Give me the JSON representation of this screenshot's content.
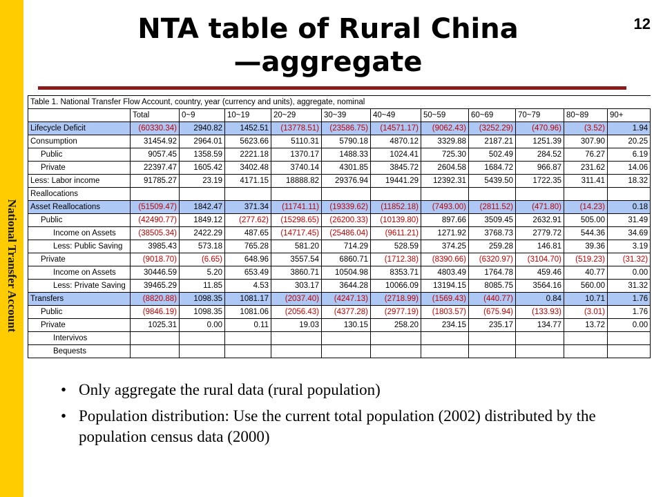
{
  "slide": {
    "title_line1": "NTA table of Rural China",
    "title_line2": "—aggregate",
    "page_number": "12",
    "sidebar_label": "National Transfer Account"
  },
  "table": {
    "caption": "Table 1. National Transfer Flow Account, country, year (currency and units), aggregate, nominal",
    "headers": [
      "",
      "Total",
      "0~9",
      "10~19",
      "20~29",
      "30~39",
      "40~49",
      "50~59",
      "60~69",
      "70~79",
      "80~89",
      "90+"
    ],
    "rows": [
      {
        "label": "Lifecycle Deficit",
        "indent": 0,
        "highlight": true,
        "values": [
          "(60330.34)",
          "2940.82",
          "1452.51",
          "(13778.51)",
          "(23586.75)",
          "(14571.17)",
          "(9062.43)",
          "(3252.29)",
          "(470.96)",
          "(3.52)",
          "1.94"
        ]
      },
      {
        "label": "Consumption",
        "indent": 0,
        "highlight": false,
        "values": [
          "31454.92",
          "2964.01",
          "5623.66",
          "5110.31",
          "5790.18",
          "4870.12",
          "3329.88",
          "2187.21",
          "1251.39",
          "307.90",
          "20.25"
        ]
      },
      {
        "label": "Public",
        "indent": 1,
        "highlight": false,
        "values": [
          "9057.45",
          "1358.59",
          "2221.18",
          "1370.17",
          "1488.33",
          "1024.41",
          "725.30",
          "502.49",
          "284.52",
          "76.27",
          "6.19"
        ]
      },
      {
        "label": "Private",
        "indent": 1,
        "highlight": false,
        "values": [
          "22397.47",
          "1605.42",
          "3402.48",
          "3740.14",
          "4301.85",
          "3845.72",
          "2604.58",
          "1684.72",
          "966.87",
          "231.62",
          "14.06"
        ]
      },
      {
        "label": "Less: Labor income",
        "indent": 0,
        "highlight": false,
        "values": [
          "91785.27",
          "23.19",
          "4171.15",
          "18888.82",
          "29376.94",
          "19441.29",
          "12392.31",
          "5439.50",
          "1722.35",
          "311.41",
          "18.32"
        ]
      },
      {
        "label": "Reallocations",
        "indent": 0,
        "highlight": false,
        "values": [
          "",
          "",
          "",
          "",
          "",
          "",
          "",
          "",
          "",
          "",
          ""
        ]
      },
      {
        "label": "Asset Reallocations",
        "indent": 0,
        "highlight": true,
        "values": [
          "(51509.47)",
          "1842.47",
          "371.34",
          "(11741.11)",
          "(19339.62)",
          "(11852.18)",
          "(7493.00)",
          "(2811.52)",
          "(471.80)",
          "(14.23)",
          "0.18"
        ]
      },
      {
        "label": "Public",
        "indent": 1,
        "highlight": false,
        "values": [
          "(42490.77)",
          "1849.12",
          "(277.62)",
          "(15298.65)",
          "(26200.33)",
          "(10139.80)",
          "897.66",
          "3509.45",
          "2632.91",
          "505.00",
          "31.49"
        ]
      },
      {
        "label": "Income on Assets",
        "indent": 2,
        "highlight": false,
        "values": [
          "(38505.34)",
          "2422.29",
          "487.65",
          "(14717.45)",
          "(25486.04)",
          "(9611.21)",
          "1271.92",
          "3768.73",
          "2779.72",
          "544.36",
          "34.69"
        ]
      },
      {
        "label": "Less: Public Saving",
        "indent": 2,
        "highlight": false,
        "values": [
          "3985.43",
          "573.18",
          "765.28",
          "581.20",
          "714.29",
          "528.59",
          "374.25",
          "259.28",
          "146.81",
          "39.36",
          "3.19"
        ]
      },
      {
        "label": "Private",
        "indent": 1,
        "highlight": false,
        "values": [
          "(9018.70)",
          "(6.65)",
          "648.96",
          "3557.54",
          "6860.71",
          "(1712.38)",
          "(8390.66)",
          "(6320.97)",
          "(3104.70)",
          "(519.23)",
          "(31.32)"
        ]
      },
      {
        "label": "Income on Assets",
        "indent": 2,
        "highlight": false,
        "values": [
          "30446.59",
          "5.20",
          "653.49",
          "3860.71",
          "10504.98",
          "8353.71",
          "4803.49",
          "1764.78",
          "459.46",
          "40.77",
          "0.00"
        ]
      },
      {
        "label": "Less: Private Saving",
        "indent": 2,
        "highlight": false,
        "values": [
          "39465.29",
          "11.85",
          "4.53",
          "303.17",
          "3644.28",
          "10066.09",
          "13194.15",
          "8085.75",
          "3564.16",
          "560.00",
          "31.32"
        ]
      },
      {
        "label": "Transfers",
        "indent": 0,
        "highlight": true,
        "values": [
          "(8820.88)",
          "1098.35",
          "1081.17",
          "(2037.40)",
          "(4247.13)",
          "(2718.99)",
          "(1569.43)",
          "(440.77)",
          "0.84",
          "10.71",
          "1.76"
        ]
      },
      {
        "label": "Public",
        "indent": 1,
        "highlight": false,
        "values": [
          "(9846.19)",
          "1098.35",
          "1081.06",
          "(2056.43)",
          "(4377.28)",
          "(2977.19)",
          "(1803.57)",
          "(675.94)",
          "(133.93)",
          "(3.01)",
          "1.76"
        ]
      },
      {
        "label": "Private",
        "indent": 1,
        "highlight": false,
        "values": [
          "1025.31",
          "0.00",
          "0.11",
          "19.03",
          "130.15",
          "258.20",
          "234.15",
          "235.17",
          "134.77",
          "13.72",
          "0.00"
        ]
      },
      {
        "label": "Intervivos",
        "indent": 2,
        "highlight": false,
        "values": [
          "",
          "",
          "",
          "",
          "",
          "",
          "",
          "",
          "",
          "",
          ""
        ]
      },
      {
        "label": "Bequests",
        "indent": 2,
        "highlight": false,
        "values": [
          "",
          "",
          "",
          "",
          "",
          "",
          "",
          "",
          "",
          "",
          ""
        ]
      }
    ]
  },
  "bullets": [
    "Only aggregate the rural data (rural population)",
    "Population distribution: Use the current total population (2002) distributed by the population census data (2000)"
  ]
}
